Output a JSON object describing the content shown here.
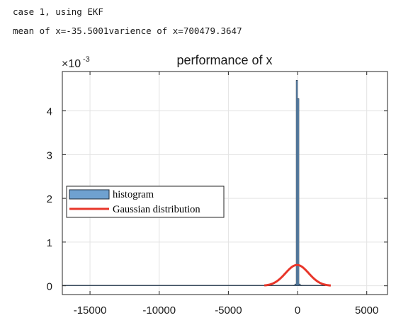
{
  "console": {
    "line1": "case 1, using EKF",
    "line2": "mean of x=-35.5001varience of x=700479.3647"
  },
  "colors": {
    "histogram_fill": "#6fa1d0",
    "histogram_edge": "#1f2b38",
    "gaussian": "#e8362a",
    "grid": "#e3e3e3",
    "axis": "#262626"
  },
  "chart_data": {
    "type": "bar",
    "title": "performance of x",
    "xlabel": "",
    "ylabel": "",
    "y_exponent_label": "×10-3",
    "xlim": [
      -17000,
      6500
    ],
    "ylim": [
      -0.0002,
      0.0049
    ],
    "xticks": [
      -15000,
      -10000,
      -5000,
      0,
      5000
    ],
    "xtick_labels": [
      "-15000",
      "-10000",
      "-5000",
      "0",
      "5000"
    ],
    "yticks": [
      0,
      0.001,
      0.002,
      0.003,
      0.004
    ],
    "ytick_labels": [
      "0",
      "1",
      "2",
      "3",
      "4"
    ],
    "grid": true,
    "legend_position": "middle-left",
    "series": [
      {
        "name": "histogram",
        "kind": "histogram",
        "bins": [
          {
            "x0": -17000,
            "x1": -300,
            "value": 1.2e-06
          },
          {
            "x0": -300,
            "x1": -200,
            "value": 1e-05
          },
          {
            "x0": -200,
            "x1": -100,
            "value": 4e-05
          },
          {
            "x0": -100,
            "x1": 0,
            "value": 0.0047
          },
          {
            "x0": 0,
            "x1": 100,
            "value": 0.00428
          },
          {
            "x0": 100,
            "x1": 200,
            "value": 4e-05
          },
          {
            "x0": 200,
            "x1": 300,
            "value": 1e-05
          },
          {
            "x0": 300,
            "x1": 2000,
            "value": 1.2e-06
          }
        ]
      },
      {
        "name": "Gaussian distribution",
        "kind": "curve",
        "mean": -35.5001,
        "variance": 700479.3647,
        "x_range": [
          -2400,
          2400
        ]
      }
    ]
  }
}
